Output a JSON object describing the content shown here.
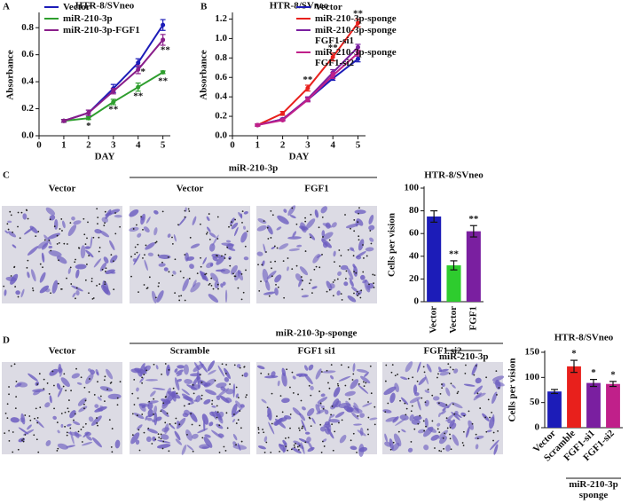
{
  "panels": {
    "a": "A",
    "b": "B",
    "c": "C",
    "d": "D"
  },
  "images": [
    {
      "group": "miR-210-3p",
      "labels": [
        "Vector",
        "Vector",
        "FGF1"
      ]
    },
    {
      "group": "miR-210-3p-sponge",
      "labels": [
        "Vector",
        "Scramble",
        "FGF1 si1",
        "FGF1 si2"
      ]
    }
  ],
  "chart_data": [
    {
      "type": "line",
      "title": "HTR-8/SVneo",
      "x_label": "DAY",
      "y_label": "Absorbance",
      "x": [
        1,
        2,
        3,
        4,
        5
      ],
      "xlim": [
        0,
        5.3
      ],
      "xticks": [
        0,
        1,
        2,
        3,
        4,
        5
      ],
      "ylim": [
        0,
        0.9
      ],
      "yticks": [
        {
          "value": 0,
          "label": "0.0"
        },
        0.2,
        0.4,
        0.6,
        0.8
      ],
      "legend": "upper left",
      "series": [
        {
          "name": "Vector",
          "color": "#1c1cb8",
          "values": [
            0.11,
            0.17,
            0.35,
            0.54,
            0.82
          ],
          "errors": [
            0.01,
            0.02,
            0.03,
            0.03,
            0.04
          ]
        },
        {
          "name": "miR-210-3p",
          "color": "#2e9e2e",
          "values": [
            0.11,
            0.13,
            0.25,
            0.36,
            0.47
          ],
          "errors": [
            0.01,
            0.01,
            0.02,
            0.03,
            0.01
          ]
        },
        {
          "name": "miR-210-3p-FGF1",
          "color": "#8a1e8a",
          "values": [
            0.11,
            0.17,
            0.33,
            0.49,
            0.71
          ],
          "errors": [
            0.01,
            0.02,
            0.02,
            0.03,
            0.04
          ]
        }
      ],
      "annotations": [
        {
          "text": "*",
          "x": 2,
          "y": 0.07,
          "color": "#2e9e2e"
        },
        {
          "text": "**",
          "x": 3,
          "y": 0.19,
          "color": "#2e9e2e"
        },
        {
          "text": "**",
          "x": 4,
          "y": 0.29,
          "color": "#2e9e2e"
        },
        {
          "text": "**",
          "x": 5,
          "y": 0.4,
          "color": "#2e9e2e"
        },
        {
          "text": "*",
          "x": 4.2,
          "y": 0.47,
          "color": "#8a1e8a"
        },
        {
          "text": "**",
          "x": 5.1,
          "y": 0.63,
          "color": "#8a1e8a"
        }
      ]
    },
    {
      "type": "line",
      "title": "HTR-8/SVneo",
      "x_label": "DAY",
      "y_label": "Absorbance",
      "x": [
        1,
        2,
        3,
        4,
        5
      ],
      "xlim": [
        0,
        5.3
      ],
      "xticks": [
        0,
        1,
        2,
        3,
        4,
        5
      ],
      "ylim": [
        0,
        1.25
      ],
      "yticks": [
        {
          "value": 0,
          "label": "0.0"
        },
        0.2,
        0.4,
        0.6,
        0.8,
        {
          "value": 1,
          "label": "1.0"
        },
        1.2
      ],
      "legend": "upper right",
      "series": [
        {
          "name": "Vector",
          "color": "#1c1cb8",
          "values": [
            0.11,
            0.17,
            0.37,
            0.59,
            0.79
          ],
          "errors": [
            0.01,
            0.01,
            0.02,
            0.02,
            0.03
          ]
        },
        {
          "name": "miR-210-3p-sponge",
          "color": "#e8201c",
          "values": [
            0.11,
            0.23,
            0.49,
            0.81,
            1.16
          ],
          "errors": [
            0.01,
            0.02,
            0.03,
            0.04,
            0.04
          ]
        },
        {
          "name": "miR-210-3p-sponge FGF1-si1",
          "color": "#7a1fa0",
          "values": [
            0.11,
            0.17,
            0.38,
            0.65,
            0.91
          ],
          "errors": [
            0.01,
            0.01,
            0.02,
            0.03,
            0.03
          ]
        },
        {
          "name": "miR-210-3p-sponge FGF1-si2",
          "color": "#c0208a",
          "values": [
            0.11,
            0.16,
            0.37,
            0.62,
            0.85
          ],
          "errors": [
            0.01,
            0.01,
            0.02,
            0.03,
            0.03
          ]
        }
      ],
      "annotations": [
        {
          "text": "**",
          "x": 3,
          "y": 0.57,
          "color": "#333333"
        },
        {
          "text": "**",
          "x": 4,
          "y": 0.9,
          "color": "#333333"
        },
        {
          "text": "**",
          "x": 5,
          "y": 1.25,
          "color": "#333333"
        }
      ]
    },
    {
      "type": "bar",
      "title": "HTR-8/SVneo",
      "y_label": "Cells per vision",
      "categories": [
        "Vector",
        "Vector",
        "FGF1"
      ],
      "values": [
        75,
        32,
        62
      ],
      "errors": [
        5,
        4,
        5
      ],
      "colors": [
        "#1c1cb8",
        "#2ecc2e",
        "#7a1fa0"
      ],
      "ylim": [
        0,
        100
      ],
      "yticks": [
        0,
        20,
        40,
        60,
        80,
        100
      ],
      "group": {
        "label": "miR-210-3p",
        "span": [
          1,
          2
        ]
      },
      "annotations": [
        {
          "index": 1,
          "text": "**"
        },
        {
          "index": 2,
          "text": "**"
        }
      ]
    },
    {
      "type": "bar",
      "title": "HTR-8/SVneo",
      "y_label": "Cells per vision",
      "categories": [
        "Vector",
        "Scramble",
        "FGF1-si1",
        "FGF1-si2"
      ],
      "values": [
        72,
        122,
        89,
        87
      ],
      "errors": [
        4,
        12,
        7,
        5
      ],
      "colors": [
        "#1c1cb8",
        "#e8201c",
        "#7a1fa0",
        "#c0208a"
      ],
      "ylim": [
        0,
        150
      ],
      "yticks": [
        0,
        50,
        100,
        150
      ],
      "group": {
        "label": "miR-210-3p sponge",
        "span": [
          1,
          3
        ]
      },
      "annotations": [
        {
          "index": 1,
          "text": "*"
        },
        {
          "index": 2,
          "text": "*"
        },
        {
          "index": 3,
          "text": "*"
        }
      ]
    }
  ]
}
